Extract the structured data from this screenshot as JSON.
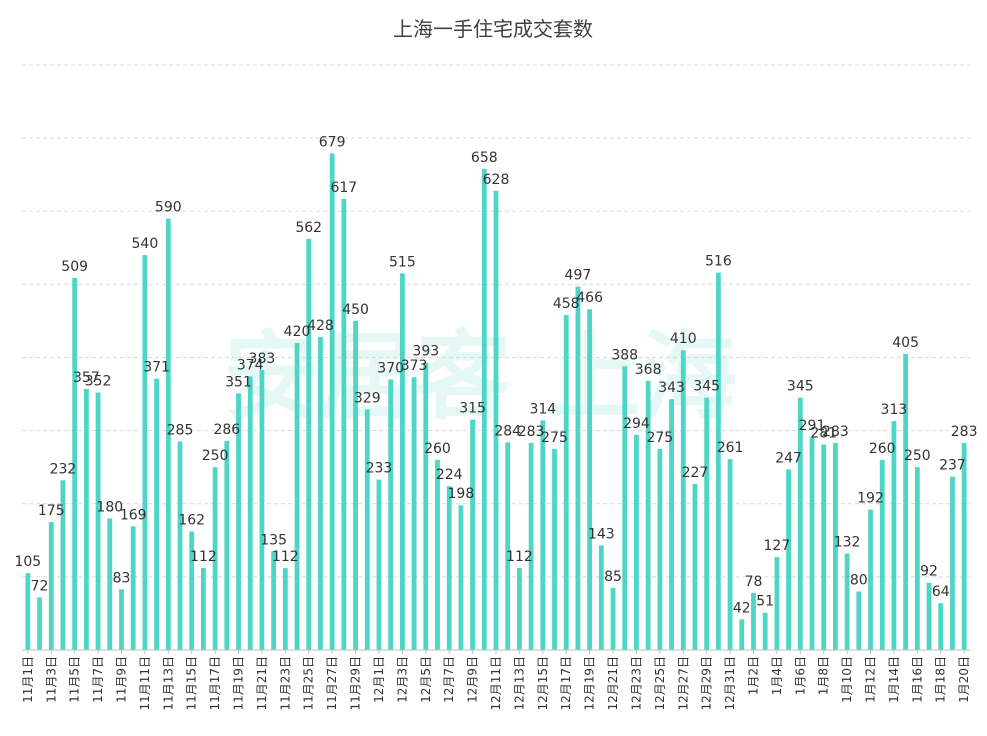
{
  "chart_data": {
    "type": "bar",
    "title": "上海一手住宅成交套数",
    "watermark": "安居客 上海",
    "xlabel": "",
    "ylabel": "",
    "ylim": [
      0,
      800
    ],
    "grid": true,
    "bar_color": "#4dd5c5",
    "categories": [
      "11月1日",
      "11月2日",
      "11月3日",
      "11月4日",
      "11月5日",
      "11月6日",
      "11月7日",
      "11月8日",
      "11月9日",
      "11月10日",
      "11月11日",
      "11月12日",
      "11月13日",
      "11月14日",
      "11月15日",
      "11月16日",
      "11月17日",
      "11月18日",
      "11月19日",
      "11月20日",
      "11月21日",
      "11月22日",
      "11月23日",
      "11月24日",
      "11月25日",
      "11月26日",
      "11月27日",
      "11月28日",
      "11月29日",
      "11月30日",
      "12月1日",
      "12月2日",
      "12月3日",
      "12月4日",
      "12月5日",
      "12月6日",
      "12月7日",
      "12月8日",
      "12月9日",
      "12月10日",
      "12月11日",
      "12月12日",
      "12月13日",
      "12月14日",
      "12月15日",
      "12月16日",
      "12月17日",
      "12月18日",
      "12月19日",
      "12月20日",
      "12月21日",
      "12月22日",
      "12月23日",
      "12月24日",
      "12月25日",
      "12月26日",
      "12月27日",
      "12月28日",
      "12月29日",
      "12月30日",
      "12月31日",
      "1月1日",
      "1月2日",
      "1月3日",
      "1月4日",
      "1月5日",
      "1月6日",
      "1月7日",
      "1月8日",
      "1月9日",
      "1月10日",
      "1月11日",
      "1月12日",
      "1月13日",
      "1月14日",
      "1月15日",
      "1月16日",
      "1月17日",
      "1月18日",
      "1月19日",
      "1月20日"
    ],
    "tick_labels": [
      "11月1日",
      "11月3日",
      "11月5日",
      "11月7日",
      "11月9日",
      "11月11日",
      "11月13日",
      "11月15日",
      "11月17日",
      "11月19日",
      "11月21日",
      "11月23日",
      "11月25日",
      "11月27日",
      "11月29日",
      "12月1日",
      "12月3日",
      "12月5日",
      "12月7日",
      "12月9日",
      "12月11日",
      "12月13日",
      "12月15日",
      "12月17日",
      "12月19日",
      "12月21日",
      "12月23日",
      "12月25日",
      "12月27日",
      "12月29日",
      "12月31日",
      "1月2日",
      "1月4日",
      "1月6日",
      "1月8日",
      "1月10日",
      "1月12日",
      "1月14日",
      "1月16日",
      "1月18日",
      "1月20日"
    ],
    "values": [
      105,
      72,
      175,
      232,
      509,
      357,
      352,
      180,
      83,
      169,
      540,
      371,
      590,
      285,
      162,
      112,
      250,
      286,
      351,
      374,
      383,
      135,
      112,
      420,
      562,
      428,
      679,
      617,
      450,
      329,
      233,
      370,
      515,
      373,
      393,
      260,
      224,
      198,
      315,
      658,
      628,
      284,
      112,
      283,
      314,
      275,
      458,
      497,
      466,
      143,
      85,
      388,
      294,
      368,
      275,
      343,
      410,
      227,
      345,
      516,
      261,
      42,
      78,
      51,
      127,
      247,
      345,
      291,
      281,
      283,
      132,
      80,
      192,
      260,
      313,
      405,
      250,
      92,
      64,
      237,
      283
    ]
  }
}
